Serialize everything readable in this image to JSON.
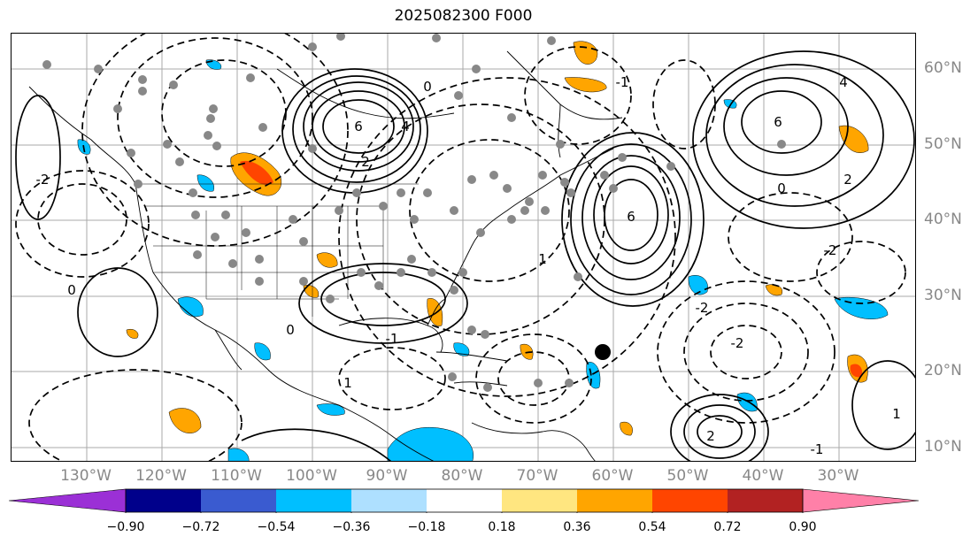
{
  "title": "2025082300 F000",
  "lon_labels": [
    "130°W",
    "120°W",
    "110°W",
    "100°W",
    "90°W",
    "80°W",
    "70°W",
    "60°W",
    "50°W",
    "40°W",
    "30°W"
  ],
  "lat_labels": [
    "60°N",
    "50°N",
    "40°N",
    "30°N",
    "20°N",
    "10°N"
  ],
  "colorbar": {
    "ticks": [
      "−0.90",
      "−0.72",
      "−0.54",
      "−0.36",
      "−0.18",
      "0.18",
      "0.36",
      "0.54",
      "0.72",
      "0.90"
    ],
    "colors": [
      "#9b30d6",
      "#00008b",
      "#3a5bd0",
      "#00bfff",
      "#aee0ff",
      "#ffffff",
      "#ffe680",
      "#ffa500",
      "#ff4500",
      "#b22222",
      "#ff80a8"
    ]
  },
  "contour_labels": [
    "6",
    "6",
    "6",
    "4",
    "4",
    "2",
    "2",
    "2",
    "0",
    "0",
    "0",
    "0",
    "-2",
    "-2",
    "-2",
    "-2",
    "-1",
    "-1",
    "-1",
    "1",
    "1",
    "1"
  ],
  "colors": {
    "positive_fill": "#ffa500",
    "strong_positive_fill": "#ff4500",
    "negative_fill": "#00bfff",
    "station_dots": "#888888",
    "marker": "#000000"
  }
}
